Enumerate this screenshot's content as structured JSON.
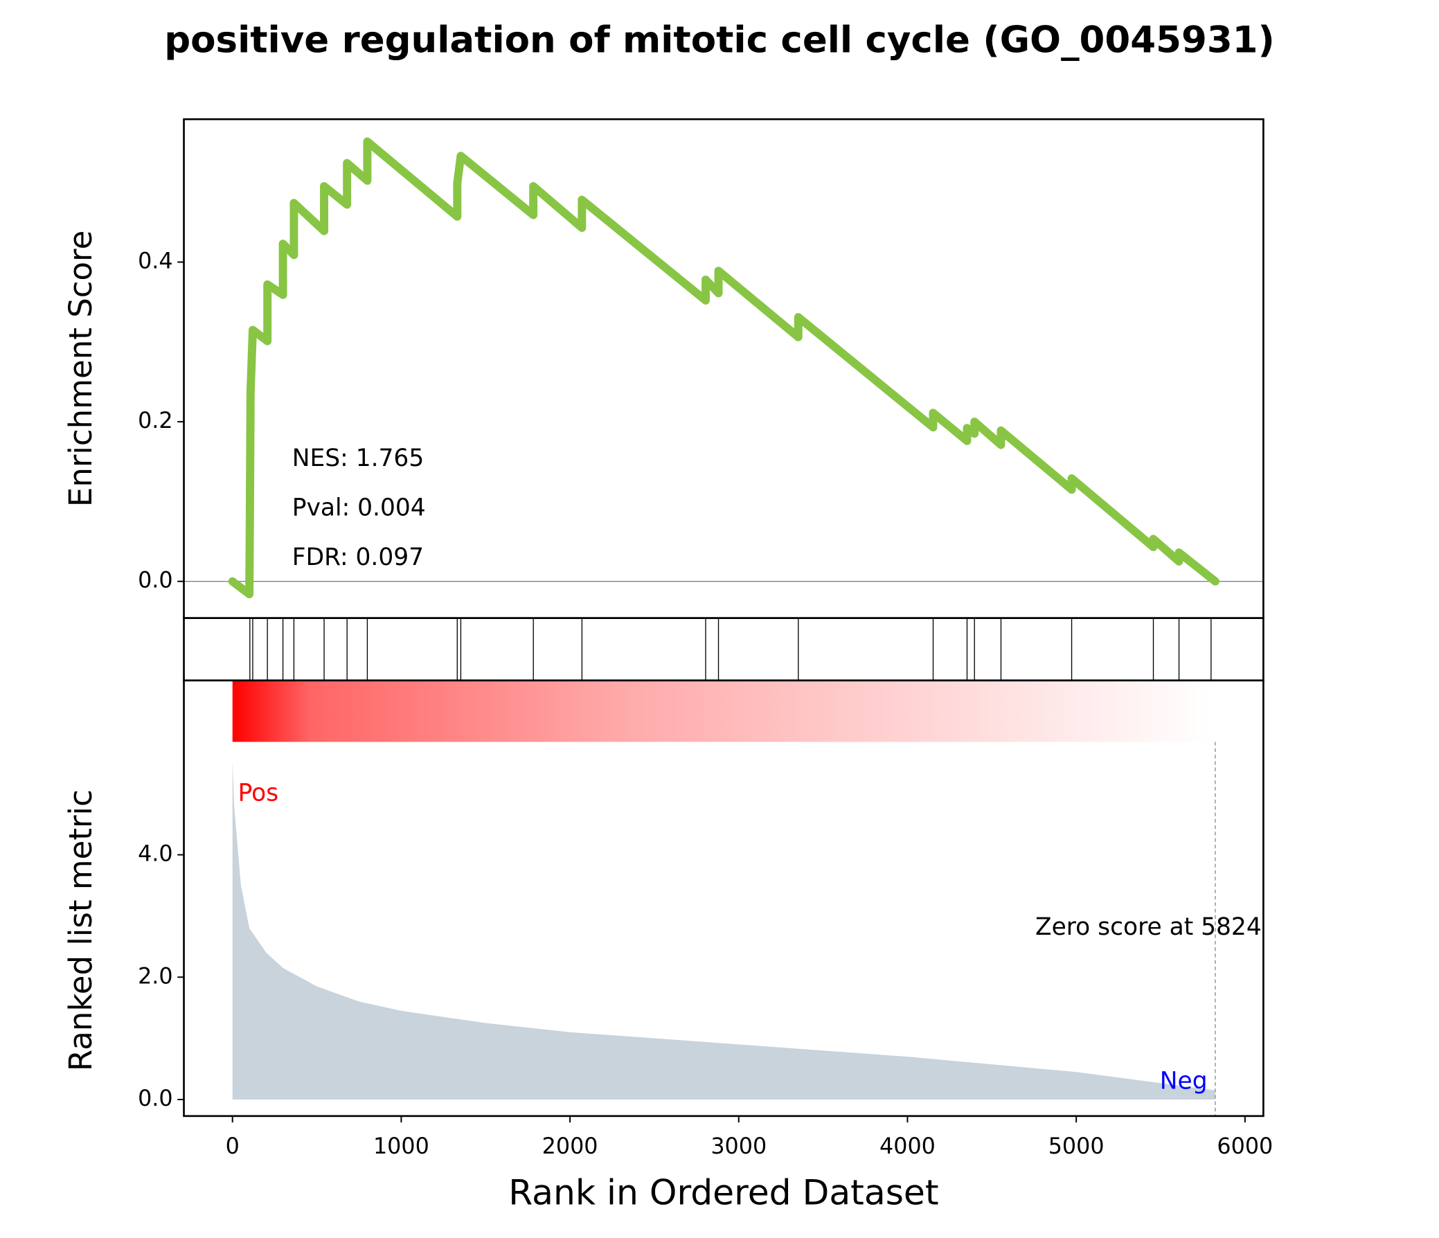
{
  "chart_data": [
    {
      "type": "line",
      "title": "positive regulation of mitotic cell cycle (GO_0045931)",
      "ylabel": "Enrichment Score",
      "annotations": [
        "NES: 1.765",
        "Pval: 0.004",
        "FDR: 0.097"
      ],
      "x": [
        0,
        100,
        103,
        107,
        120,
        207,
        207,
        299,
        299,
        364,
        364,
        543,
        543,
        679,
        679,
        799,
        799,
        1332,
        1332,
        1353,
        1783,
        1783,
        2071,
        2071,
        2804,
        2804,
        2880,
        2880,
        3353,
        3353,
        4152,
        4152,
        4353,
        4353,
        4397,
        4397,
        4554,
        4554,
        4973,
        4973,
        5457,
        5457,
        5609,
        5609,
        5824
      ],
      "values": [
        0,
        -0.016,
        0.068,
        0.237,
        0.315,
        0.301,
        0.372,
        0.359,
        0.423,
        0.409,
        0.474,
        0.439,
        0.495,
        0.472,
        0.524,
        0.502,
        0.551,
        0.457,
        0.499,
        0.533,
        0.459,
        0.495,
        0.443,
        0.478,
        0.352,
        0.378,
        0.361,
        0.389,
        0.306,
        0.331,
        0.193,
        0.211,
        0.176,
        0.192,
        0.185,
        0.2,
        0.171,
        0.189,
        0.115,
        0.129,
        0.043,
        0.053,
        0.025,
        0.036,
        0
      ],
      "color": "#88c544",
      "xlim": [
        -288,
        6109
      ],
      "ylim": [
        -0.046,
        0.579
      ],
      "yticks": [
        {
          "value": 0,
          "label": "0.0"
        },
        {
          "value": 0.2,
          "label": "0.2"
        },
        {
          "value": 0.4,
          "label": "0.4"
        }
      ]
    },
    {
      "type": "hits",
      "hits": [
        103,
        120,
        207,
        299,
        364,
        543,
        679,
        799,
        1332,
        1353,
        1783,
        2071,
        2804,
        2880,
        3353,
        4152,
        4353,
        4397,
        4554,
        4973,
        5457,
        5609,
        5799
      ],
      "xlim": [
        -288,
        6109
      ]
    },
    {
      "type": "area",
      "ylabel": "Ranked list metric",
      "xlabel": "Rank in Ordered Dataset",
      "annotations": [
        "Pos",
        "Neg",
        "Zero score at 5824"
      ],
      "x": [
        0,
        10,
        50,
        100,
        200,
        300,
        500,
        750,
        1000,
        1500,
        2000,
        3000,
        4000,
        5000,
        5824
      ],
      "values": [
        5.54,
        4.8,
        3.5,
        2.8,
        2.4,
        2.15,
        1.85,
        1.6,
        1.45,
        1.25,
        1.1,
        0.9,
        0.7,
        0.45,
        0.15
      ],
      "color": "#c8d3dc",
      "xlim": [
        -288,
        6109
      ],
      "ylim": [
        -0.27,
        6.85
      ],
      "yticks": [
        {
          "value": 0,
          "label": "0.0"
        },
        {
          "value": 2,
          "label": "2.0"
        },
        {
          "value": 4,
          "label": "4.0"
        }
      ],
      "xticks": [
        0,
        1000,
        2000,
        3000,
        4000,
        5000,
        6000
      ]
    }
  ]
}
